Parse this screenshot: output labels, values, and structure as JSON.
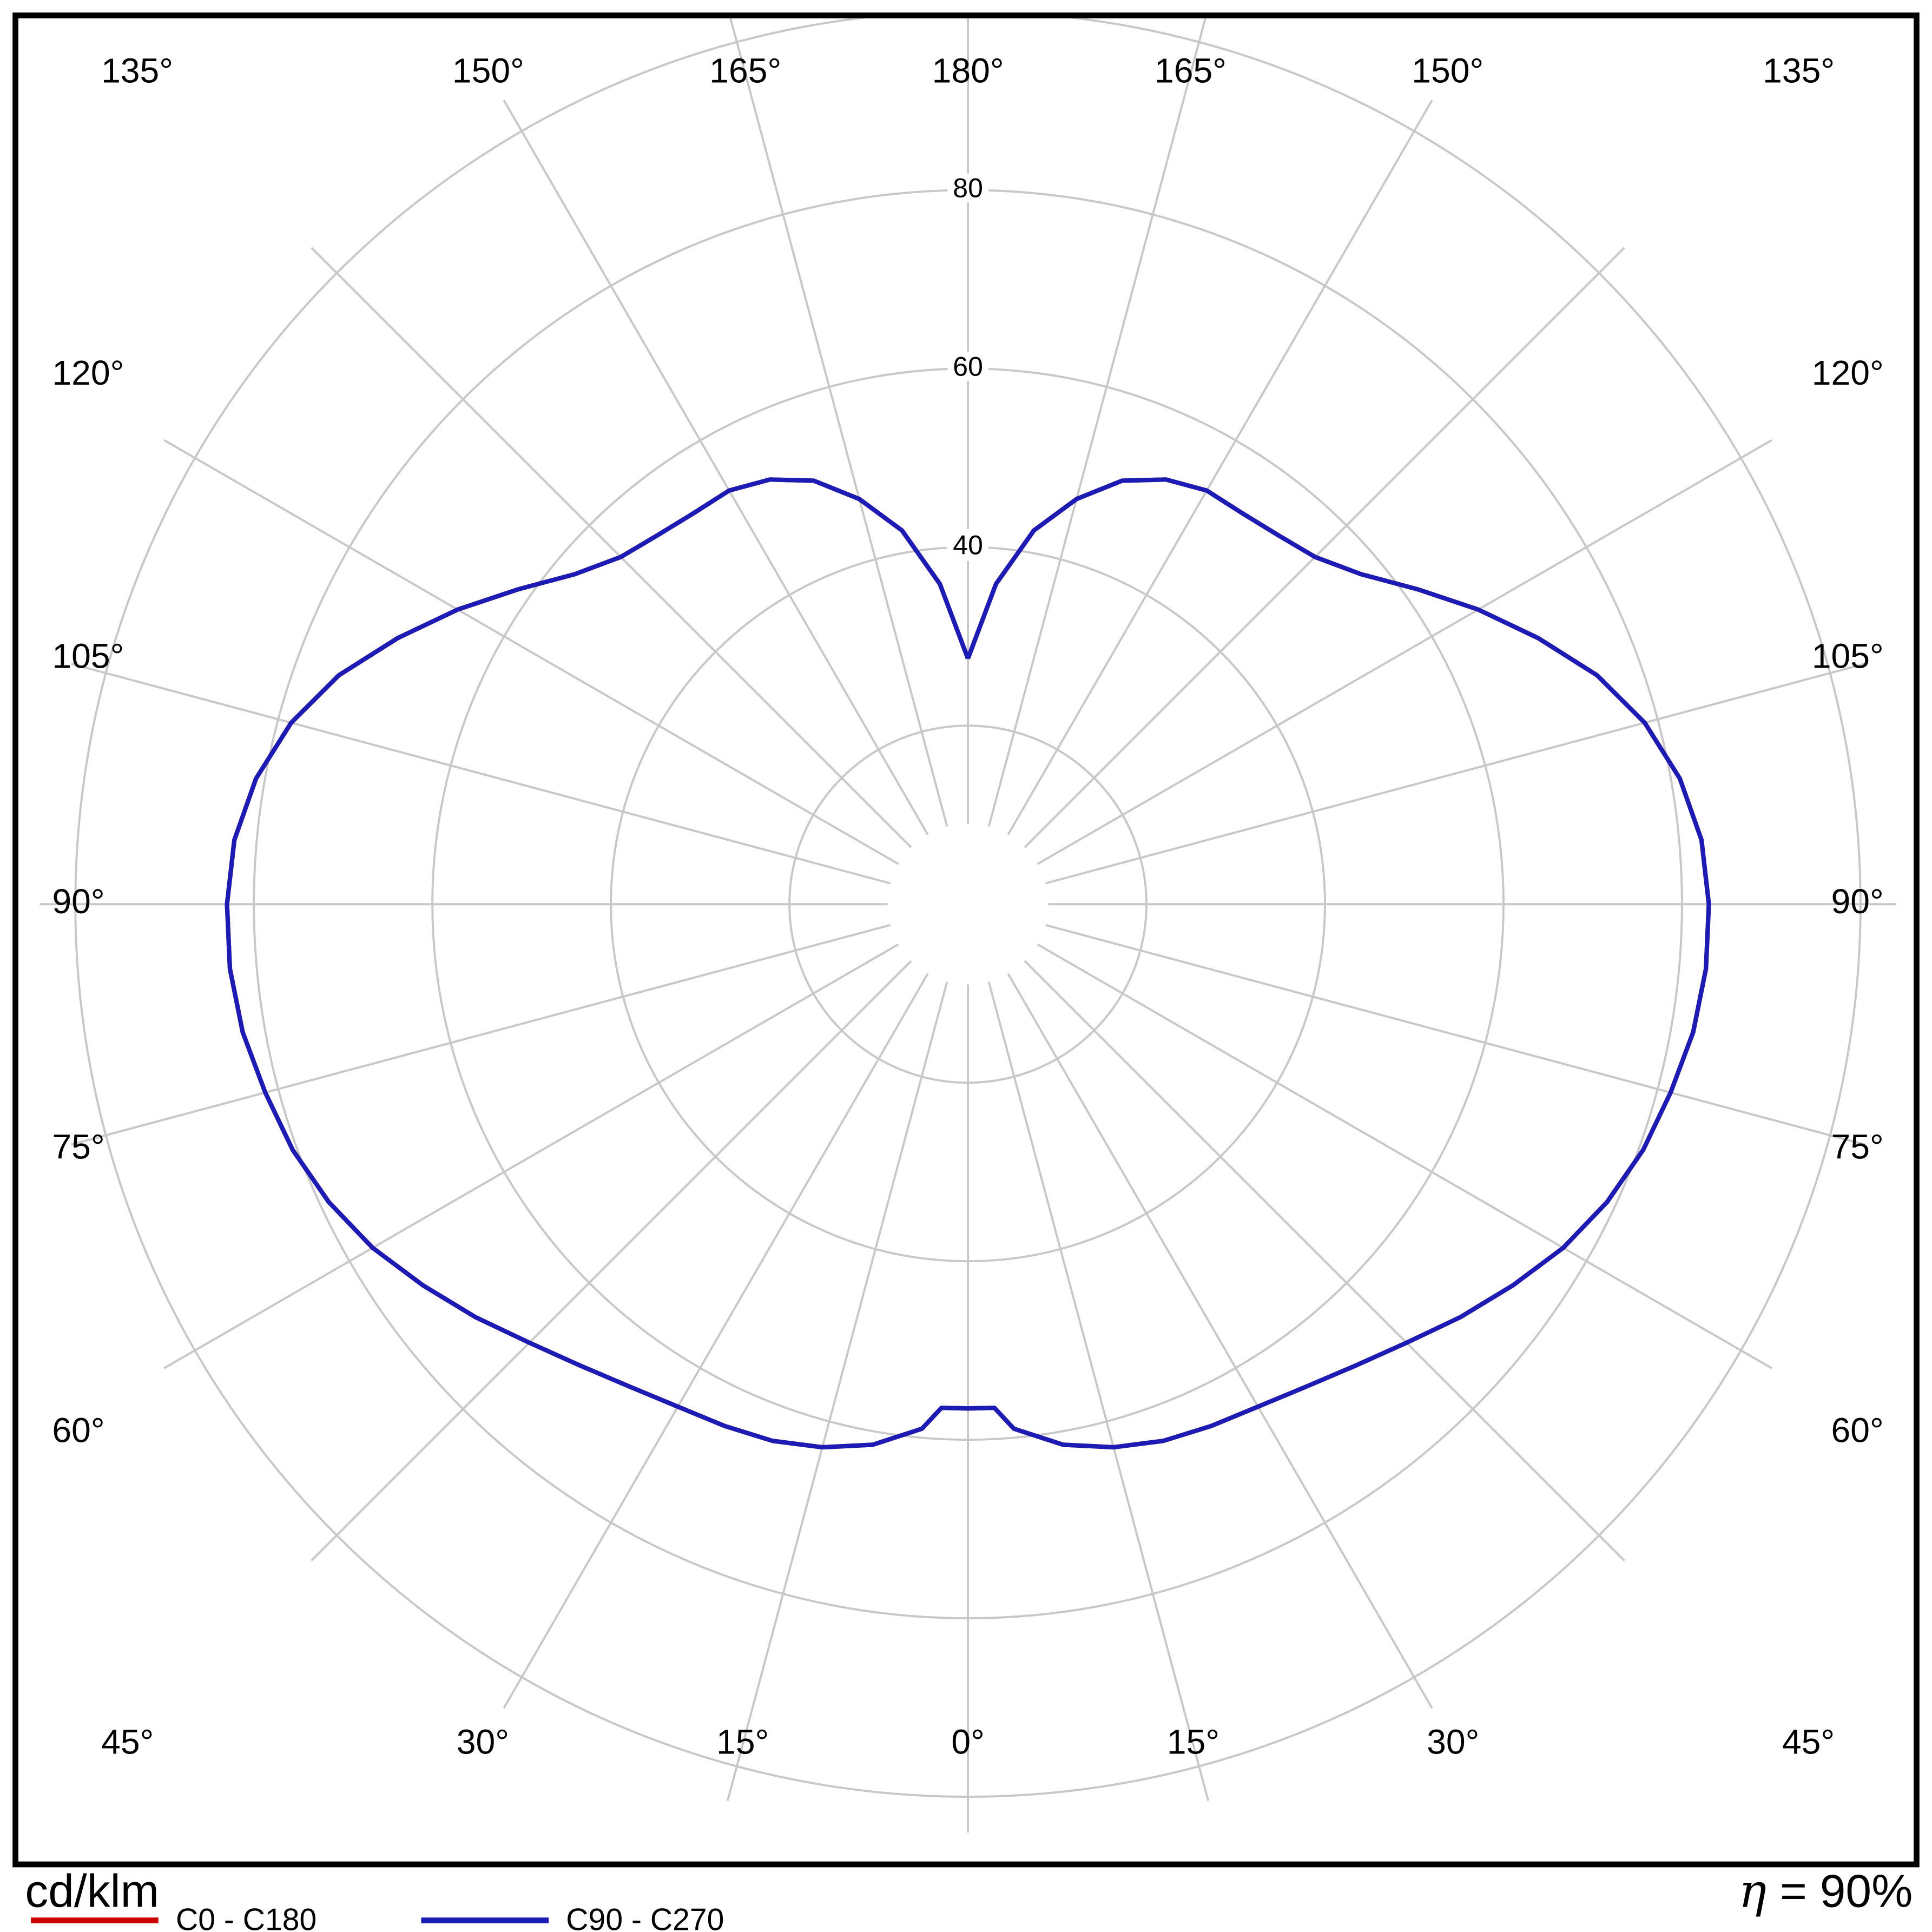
{
  "footer": {
    "units_label": "cd/klm",
    "eta_symbol": "η",
    "eta_rest": "= 90%"
  },
  "legend": [
    {
      "label": "C0 - C180",
      "color": "#cc0000"
    },
    {
      "label": "C90 - C270",
      "color": "#1c1cb4"
    }
  ],
  "chart_data": {
    "type": "line",
    "variant": "polar-photometric-distribution",
    "units": "cd/klm",
    "efficiency_text": "η = 90%",
    "efficiency_percent": 90,
    "grid_color": "#c8c8c8",
    "frame_color": "#000000",
    "angle_step_deg": 15,
    "spoke_inner": 9,
    "spoke_outer": 104,
    "rings": [
      20,
      40,
      60,
      80,
      100
    ],
    "radial_ticks": [
      {
        "value": 40,
        "label": "40"
      },
      {
        "value": 60,
        "label": "60"
      },
      {
        "value": 80,
        "label": "80"
      }
    ],
    "angle_labels": [
      {
        "deg": 0,
        "label": "0°"
      },
      {
        "deg": 15,
        "label": "15°"
      },
      {
        "deg": 30,
        "label": "30°"
      },
      {
        "deg": 45,
        "label": "45°"
      },
      {
        "deg": 60,
        "label": "60°"
      },
      {
        "deg": 75,
        "label": "75°"
      },
      {
        "deg": 90,
        "label": "90°"
      },
      {
        "deg": 105,
        "label": "105°"
      },
      {
        "deg": 120,
        "label": "120°"
      },
      {
        "deg": 135,
        "label": "135°"
      },
      {
        "deg": 150,
        "label": "150°"
      },
      {
        "deg": 165,
        "label": "165°"
      },
      {
        "deg": 180,
        "label": "180°"
      }
    ],
    "symmetric": true,
    "gamma_deg": [
      0,
      3,
      5,
      10,
      15,
      20,
      25,
      30,
      35,
      40,
      45,
      50,
      55,
      60,
      65,
      70,
      75,
      80,
      85,
      90,
      95,
      100,
      105,
      110,
      115,
      120,
      125,
      130,
      135,
      140,
      145,
      150,
      155,
      160,
      165,
      170,
      175,
      180
    ],
    "series": [
      {
        "name": "C0 - C180",
        "color": "#cc0000",
        "values": [
          56.5,
          56.5,
          59,
          61.5,
          63,
          64,
          64.5,
          65,
          66,
          67.5,
          69.5,
          72,
          74.5,
          77,
          79,
          80.5,
          81.5,
          82.5,
          83,
          83,
          82.5,
          81,
          78.5,
          75,
          70.5,
          66,
          61.5,
          57.5,
          55,
          54,
          53.5,
          53.5,
          52.5,
          50.5,
          47,
          42.5,
          36,
          27.5
        ]
      },
      {
        "name": "C90 - C270",
        "color": "#1c1cb4",
        "values": [
          56.5,
          56.5,
          59,
          61.5,
          63,
          64,
          64.5,
          65,
          66,
          67.5,
          69.5,
          72,
          74.5,
          77,
          79,
          80.5,
          81.5,
          82.5,
          83,
          83,
          82.5,
          81,
          78.5,
          75,
          70.5,
          66,
          61.5,
          57.5,
          55,
          54,
          53.5,
          53.5,
          52.5,
          50.5,
          47,
          42.5,
          36,
          27.5
        ]
      }
    ]
  }
}
